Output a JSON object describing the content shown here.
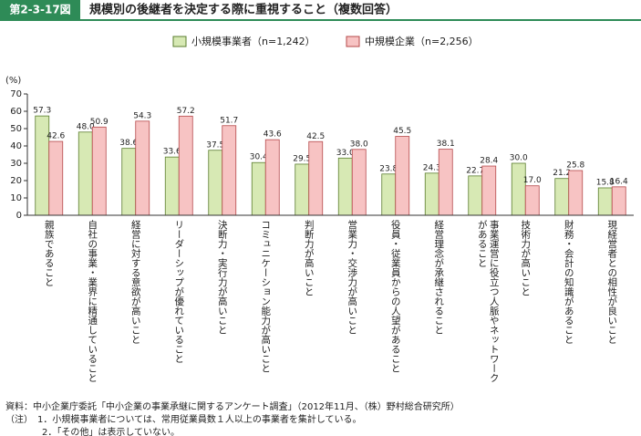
{
  "chart_data": {
    "type": "bar",
    "figure_label": "第2-3-17図",
    "title": "規模別の後継者を決定する際に重視すること（複数回答）",
    "y_label": "(%)",
    "categories": [
      "親族であること",
      "自社の事業・業界に精通していること",
      "経営に対する意欲が高いこと",
      "リーダーシップが優れていること",
      "決断力・実行力が高いこと",
      "コミュニケーション能力が高いこと",
      "判断力が高いこと",
      "営業力・交渉力が高いこと",
      "役員・従業員からの人望があること",
      "経営理念が承継されること",
      "事業運営に役立つ人脈やネットワークがあること",
      "技術力が高いこと",
      "財務・会計の知識があること",
      "現経営者との相性が良いこと"
    ],
    "series": [
      {
        "name": "小規模事業者（n=1,242）",
        "color": "#d7e9b4",
        "edge": "#5a7d2e",
        "values": [
          57.3,
          48.0,
          38.6,
          33.6,
          37.5,
          30.4,
          29.5,
          33.0,
          23.8,
          24.3,
          22.7,
          30.0,
          21.2,
          15.8
        ],
        "value_labels": [
          "57.3",
          "48.0",
          "38.6",
          "33.6",
          "37.5",
          "30.4",
          "29.5",
          "33.0",
          "23.8",
          "24.3",
          "22.7",
          "30.0",
          "21.2",
          "15.8"
        ]
      },
      {
        "name": "中規模企業（n=2,256）",
        "color": "#f7c3c3",
        "edge": "#b5484a",
        "values": [
          42.6,
          50.9,
          54.3,
          57.2,
          51.7,
          43.6,
          42.5,
          38.0,
          45.5,
          38.1,
          28.4,
          17.0,
          25.8,
          16.4
        ],
        "value_labels": [
          "42.6",
          "50.9",
          "54.3",
          "57.2",
          "51.7",
          "43.6",
          "42.5",
          "38.0",
          "45.5",
          "38.1",
          "28.4",
          "17.0",
          "25.8",
          "16.4"
        ]
      }
    ],
    "ylim": [
      0,
      70
    ],
    "yticks": [
      0,
      10,
      20,
      30,
      40,
      50,
      60,
      70
    ],
    "notes": [
      "資料：中小企業庁委託「中小企業の事業承継に関するアンケート調査」（2012年11月、（株）野村総合研究所）",
      "（注）　1．小規模事業者については、常用従業員数１人以上の事業者を集計している。",
      "　　　　2．「その他」は表示していない。"
    ]
  }
}
